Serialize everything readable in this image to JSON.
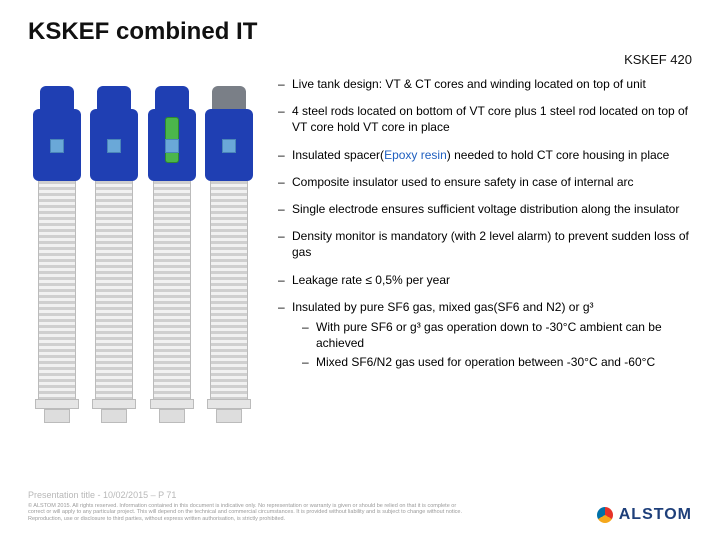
{
  "title": "KSKEF combined IT",
  "subtitle": "KSKEF 420",
  "illustration": {
    "units": [
      {
        "head_top_color": "#1f3fb3",
        "head_body_color": "#1f3fb3",
        "cutaway": false
      },
      {
        "head_top_color": "#1f3fb3",
        "head_body_color": "#1f3fb3",
        "cutaway": false
      },
      {
        "head_top_color": "#1f3fb3",
        "head_body_color": "#1f3fb3",
        "cutaway": true
      },
      {
        "head_top_color": "#7a7f87",
        "head_body_color": "#1f3fb3",
        "cutaway": false
      }
    ],
    "insulator_stripe_light": "#f1f1f1",
    "insulator_stripe_dark": "#cfcfcf"
  },
  "bullets": [
    {
      "text_pre": "Live tank design: VT & CT cores and winding located on top of unit"
    },
    {
      "text_pre": "4 steel rods located on bottom of VT core plus 1 steel rod located on top of VT core hold VT core in place"
    },
    {
      "text_pre": "Insulated spacer(",
      "epoxy": "Epoxy resin",
      "text_post": ") needed to hold CT core housing in place"
    },
    {
      "text_pre": "Composite insulator used to ensure safety in case of internal arc"
    },
    {
      "text_pre": "Single electrode ensures sufficient voltage distribution along the insulator"
    },
    {
      "text_pre": "Density monitor is mandatory (with 2 level alarm) to prevent sudden loss of gas"
    },
    {
      "text_pre": "Leakage rate ≤ 0,5% per year"
    },
    {
      "text_pre": "Insulated by pure SF6 gas, mixed gas(SF6 and N2) or g³",
      "sub": [
        "With pure SF6 or g³ gas operation down to -30°C ambient can be achieved",
        "Mixed SF6/N2 gas used for operation between -30°C and -60°C"
      ]
    }
  ],
  "footer": {
    "pres_line": "Presentation title - 10/02/2015 – P 71",
    "legal": "© ALSTOM 2015. All rights reserved. Information contained in this document is indicative only. No representation or warranty is given or should be relied on that it is complete or correct or will apply to any particular project. This will depend on the technical and commercial circumstances. It is provided without liability and is subject to change without notice. Reproduction, use or disclosure to third parties, without express written authorisation, is strictly prohibited."
  },
  "logo": {
    "text": "ALSTOM"
  }
}
